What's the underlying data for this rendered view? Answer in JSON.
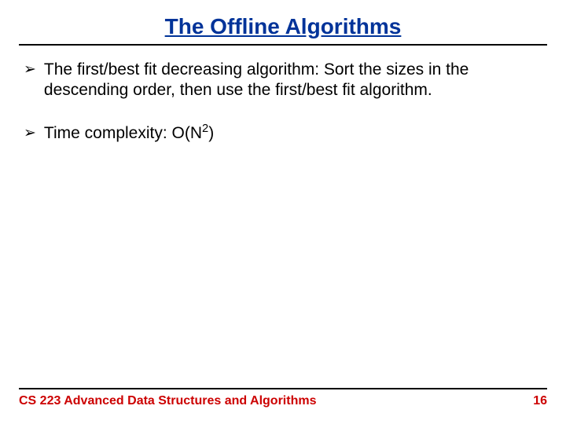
{
  "title": "The Offline Algorithms",
  "bullets": [
    {
      "marker": "➢",
      "text": "The first/best fit decreasing algorithm: Sort the sizes in the descending order, then use the first/best fit algorithm."
    },
    {
      "marker": "➢",
      "prefix": "Time complexity: O(N",
      "sup": "2",
      "suffix": ")"
    }
  ],
  "footer": {
    "course": "CS 223 Advanced Data Structures and Algorithms",
    "page": "16"
  },
  "colors": {
    "title": "#003399",
    "rule": "#000000",
    "text": "#000000",
    "footer": "#cc0000",
    "background": "#ffffff"
  },
  "typography": {
    "title_fontsize": 28,
    "body_fontsize": 21,
    "footer_fontsize": 16,
    "font_family": "Arial"
  }
}
